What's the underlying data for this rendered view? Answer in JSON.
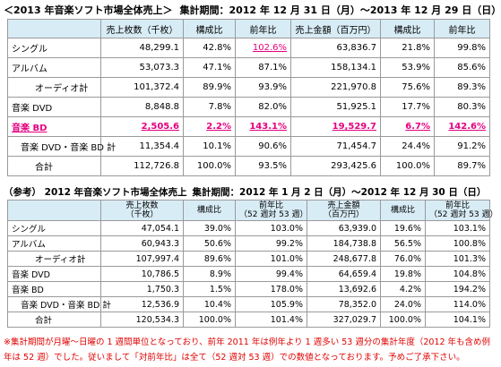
{
  "title1": {
    "heading": "＜2013 年音楽ソフト市場全体売上＞",
    "period": "集計期間：2012 年 12 月 31 日（月）～2013 年 12 月 29 日（日）"
  },
  "table1": {
    "headers": [
      "",
      "売上枚数（千枚）",
      "構成比",
      "前年比",
      "売上金額（百万円）",
      "構成比",
      "前年比"
    ],
    "rows": [
      {
        "label": "シングル",
        "cells": [
          "48,299.1",
          "42.8%",
          "102.6%",
          "63,836.7",
          "21.8%",
          "99.8%"
        ]
      },
      {
        "label": "アルバム",
        "cells": [
          "53,073.3",
          "47.1%",
          "87.1%",
          "158,134.1",
          "53.9%",
          "85.6%"
        ]
      },
      {
        "label": "オーディオ計",
        "cells": [
          "101,372.4",
          "89.9%",
          "93.9%",
          "221,970.8",
          "75.6%",
          "89.3%"
        ]
      },
      {
        "label": "音楽 DVD",
        "cells": [
          "8,848.8",
          "7.8%",
          "82.0%",
          "51,925.1",
          "17.7%",
          "80.3%"
        ]
      },
      {
        "label": "音楽 BD",
        "cells": [
          "2,505.6",
          "2.2%",
          "143.1%",
          "19,529.7",
          "6.7%",
          "142.6%"
        ]
      },
      {
        "label": "音楽 DVD・音楽 BD 計",
        "cells": [
          "11,354.4",
          "10.1%",
          "90.6%",
          "71,454.7",
          "24.4%",
          "91.2%"
        ]
      },
      {
        "label": "合計",
        "cells": [
          "112,726.8",
          "100.0%",
          "93.5%",
          "293,425.6",
          "100.0%",
          "89.7%"
        ]
      }
    ]
  },
  "title2": {
    "heading": "（参考） 2012 年音楽ソフト市場全体売上",
    "period": "集計期間：2012 年 1 月 2 日（月）～2012 年 12 月 30 日（日）"
  },
  "table2": {
    "headers": {
      "units_l1": "売上枚数",
      "units_l2": "（千枚）",
      "share": "構成比",
      "yoy_l1": "前年比",
      "yoy_l2": "（52 週対 53 週）",
      "amount_l1": "売上金額",
      "amount_l2": "（百万円）",
      "share2": "構成比",
      "yoy2_l1": "前年比",
      "yoy2_l2": "（52 週対 53 週）"
    },
    "rows": [
      {
        "label": "シングル",
        "cells": [
          "47,054.1",
          "39.0%",
          "103.0%",
          "63,939.0",
          "19.6%",
          "103.1%"
        ]
      },
      {
        "label": "アルバム",
        "cells": [
          "60,943.3",
          "50.6%",
          "99.2%",
          "184,738.8",
          "56.5%",
          "100.8%"
        ]
      },
      {
        "label": "オーディオ計",
        "cells": [
          "107,997.4",
          "89.6%",
          "101.0%",
          "248,677.8",
          "76.0%",
          "101.3%"
        ]
      },
      {
        "label": "音楽 DVD",
        "cells": [
          "10,786.5",
          "8.9%",
          "99.4%",
          "64,659.4",
          "19.8%",
          "104.8%"
        ]
      },
      {
        "label": "音楽 BD",
        "cells": [
          "1,750.3",
          "1.5%",
          "178.0%",
          "13,692.6",
          "4.2%",
          "194.2%"
        ]
      },
      {
        "label": "音楽 DVD・音楽 BD 計",
        "cells": [
          "12,536.9",
          "10.4%",
          "105.9%",
          "78,352.0",
          "24.0%",
          "114.0%"
        ]
      },
      {
        "label": "合計",
        "cells": [
          "120,534.3",
          "100.0%",
          "101.4%",
          "327,029.7",
          "100.0%",
          "104.1%"
        ]
      }
    ]
  },
  "note": "※集計期間が月曜～日曜の 1 週間単位となっており、前年 2011 年は例年より 1 週多い 53 週分の集計年度（2012 年も含め例年は 52 週）でした。従いまして「対前年比」は全て（52 週対 53 週）での数値となっております。予めご了承下さい。",
  "colors": {
    "highlight": "#e4007f",
    "header_bg": "#d8ecf6",
    "note": "#e00000"
  }
}
